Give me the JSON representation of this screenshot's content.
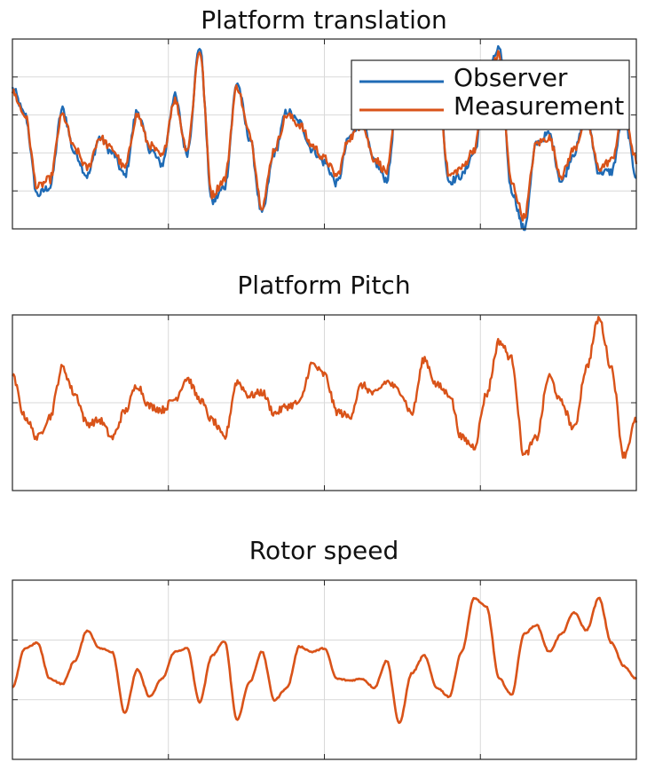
{
  "chart_data": [
    {
      "type": "line",
      "title": "Platform translation",
      "xlabel": "",
      "ylabel": "",
      "xlim": [
        0,
        100
      ],
      "ylim": [
        0,
        100
      ],
      "grid": true,
      "legend": {
        "placement": "top-right",
        "entries": [
          "Observer",
          "Measurement"
        ]
      },
      "series": [
        {
          "name": "Observer",
          "color": "#1f6bb5",
          "x": [
            0,
            2,
            4,
            6,
            8,
            10,
            12,
            14,
            16,
            18,
            20,
            22,
            24,
            26,
            28,
            30,
            32,
            34,
            36,
            38,
            40,
            42,
            44,
            46,
            48,
            50,
            52,
            54,
            56,
            58,
            60,
            62,
            64,
            66,
            68,
            70,
            72,
            74,
            76,
            78,
            80,
            82,
            84,
            86,
            88,
            90,
            92,
            94,
            96,
            98,
            100
          ],
          "y": [
            74,
            60,
            18,
            22,
            63,
            40,
            28,
            48,
            40,
            28,
            62,
            42,
            34,
            70,
            40,
            96,
            14,
            22,
            77,
            48,
            8,
            40,
            62,
            56,
            42,
            35,
            24,
            48,
            57,
            35,
            26,
            80,
            60,
            63,
            85,
            25,
            28,
            40,
            80,
            95,
            20,
            0,
            45,
            50,
            25,
            40,
            60,
            30,
            30,
            60,
            28
          ]
        },
        {
          "name": "Measurement",
          "color": "#d95319",
          "x": [
            0,
            2,
            4,
            6,
            8,
            10,
            12,
            14,
            16,
            18,
            20,
            22,
            24,
            26,
            28,
            30,
            32,
            34,
            36,
            38,
            40,
            42,
            44,
            46,
            48,
            50,
            52,
            54,
            56,
            58,
            60,
            62,
            64,
            66,
            68,
            70,
            72,
            74,
            76,
            78,
            80,
            82,
            84,
            86,
            88,
            90,
            92,
            94,
            96,
            98,
            100
          ],
          "y": [
            72,
            60,
            22,
            26,
            60,
            42,
            32,
            48,
            42,
            32,
            60,
            44,
            38,
            68,
            42,
            94,
            18,
            26,
            75,
            50,
            12,
            42,
            60,
            55,
            44,
            37,
            28,
            48,
            55,
            37,
            30,
            78,
            58,
            62,
            83,
            28,
            32,
            42,
            78,
            92,
            24,
            6,
            45,
            48,
            28,
            42,
            58,
            32,
            36,
            62,
            36
          ]
        }
      ]
    },
    {
      "type": "line",
      "title": "Platform Pitch",
      "xlabel": "",
      "ylabel": "",
      "xlim": [
        0,
        100
      ],
      "ylim": [
        0,
        100
      ],
      "grid": true,
      "series": [
        {
          "color": "#d95319",
          "x": [
            0,
            2,
            4,
            6,
            8,
            10,
            12,
            14,
            16,
            18,
            20,
            22,
            24,
            26,
            28,
            30,
            32,
            34,
            36,
            38,
            40,
            42,
            44,
            46,
            48,
            50,
            52,
            54,
            56,
            58,
            60,
            62,
            64,
            66,
            68,
            70,
            72,
            74,
            76,
            78,
            80,
            82,
            84,
            86,
            88,
            90,
            92,
            94,
            96,
            98,
            100
          ],
          "y": [
            65,
            42,
            30,
            42,
            70,
            55,
            38,
            40,
            30,
            45,
            60,
            48,
            46,
            52,
            64,
            52,
            40,
            30,
            62,
            54,
            56,
            44,
            48,
            50,
            72,
            66,
            45,
            42,
            60,
            55,
            62,
            57,
            44,
            75,
            60,
            55,
            30,
            25,
            55,
            85,
            75,
            20,
            30,
            65,
            50,
            35,
            70,
            98,
            70,
            20,
            40
          ]
        }
      ]
    },
    {
      "type": "line",
      "title": "Rotor speed",
      "xlabel": "",
      "ylabel": "",
      "xlim": [
        0,
        100
      ],
      "ylim": [
        0,
        100
      ],
      "grid": true,
      "series": [
        {
          "color": "#d95319",
          "x": [
            0,
            2,
            4,
            6,
            8,
            10,
            12,
            14,
            16,
            18,
            20,
            22,
            24,
            26,
            28,
            30,
            32,
            34,
            36,
            38,
            40,
            42,
            44,
            46,
            48,
            50,
            52,
            54,
            56,
            58,
            60,
            62,
            64,
            66,
            68,
            70,
            72,
            74,
            76,
            78,
            80,
            82,
            84,
            86,
            88,
            90,
            92,
            94,
            96,
            98,
            100
          ],
          "y": [
            40,
            62,
            65,
            45,
            42,
            55,
            72,
            62,
            60,
            26,
            50,
            35,
            45,
            60,
            62,
            32,
            58,
            66,
            22,
            43,
            60,
            33,
            40,
            63,
            60,
            62,
            45,
            44,
            45,
            40,
            55,
            20,
            48,
            58,
            40,
            35,
            60,
            90,
            85,
            45,
            36,
            70,
            75,
            60,
            70,
            82,
            72,
            90,
            65,
            52,
            45
          ]
        }
      ]
    }
  ]
}
